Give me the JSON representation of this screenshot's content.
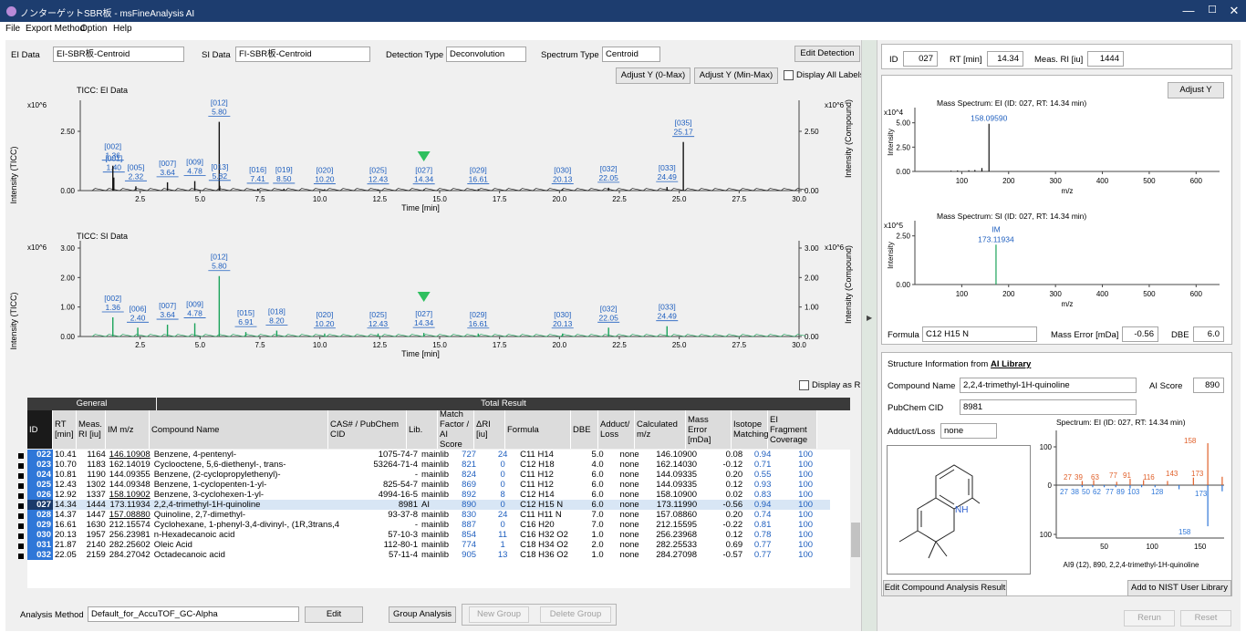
{
  "window": {
    "title": "ノンターゲットSBR板 - msFineAnalysis AI",
    "minimize": "—",
    "maximize": "☐",
    "close": "✕"
  },
  "menu": [
    "File",
    "Export Method",
    "Option",
    "Help"
  ],
  "toolbar": {
    "ei_label": "EI Data",
    "ei_value": "EI-SBR板-Centroid",
    "si_label": "SI Data",
    "si_value": "FI-SBR板-Centroid",
    "det_label": "Detection Type",
    "det_value": "Deconvolution",
    "spec_label": "Spectrum Type",
    "spec_value": "Centroid",
    "edit_detection": "Edit Detection",
    "adjust_y_max": "Adjust Y (0-Max)",
    "adjust_y_minmax": "Adjust Y (Min-Max)",
    "display_all_labels": "Display All Labels",
    "display_as_ri": "Display as RI"
  },
  "chart_data": [
    {
      "type": "line",
      "title": "TICC: EI Data",
      "xlabel": "Time [min]",
      "ylabel": "Intensity (TICC)",
      "ylabel_right": "Intensity (Compound)",
      "multiplier": "x10^6",
      "xlim": [
        0,
        30
      ],
      "ylim": [
        0,
        3.5
      ],
      "x_ticks": [
        "2.5",
        "5.0",
        "7.5",
        "10.0",
        "12.5",
        "15.0",
        "17.5",
        "20.0",
        "22.5",
        "25.0",
        "27.5",
        "30.0"
      ],
      "y_ticks": [
        "0.00",
        "2.50"
      ],
      "selected_marker": {
        "x": 14.34
      },
      "peaks": [
        {
          "id": "[001]",
          "rt": "1.40",
          "x": 1.4,
          "y": 0.55
        },
        {
          "id": "[002]",
          "rt": "1.36",
          "x": 1.36,
          "y": 1.05
        },
        {
          "id": "[005]",
          "rt": "2.32",
          "x": 2.32,
          "y": 0.18
        },
        {
          "id": "[007]",
          "rt": "3.64",
          "x": 3.64,
          "y": 0.35
        },
        {
          "id": "[009]",
          "rt": "4.78",
          "x": 4.78,
          "y": 0.4
        },
        {
          "id": "[012]",
          "rt": "5.80",
          "x": 5.8,
          "y": 2.9
        },
        {
          "id": "[013]",
          "rt": "5.82",
          "x": 5.82,
          "y": 0.2
        },
        {
          "id": "[016]",
          "rt": "7.41",
          "x": 7.41,
          "y": 0.08
        },
        {
          "id": "[019]",
          "rt": "8.50",
          "x": 8.5,
          "y": 0.08
        },
        {
          "id": "[020]",
          "rt": "10.20",
          "x": 10.2,
          "y": 0.06
        },
        {
          "id": "[025]",
          "rt": "12.43",
          "x": 12.43,
          "y": 0.05
        },
        {
          "id": "[027]",
          "rt": "14.34",
          "x": 14.34,
          "y": 0.05
        },
        {
          "id": "[029]",
          "rt": "16.61",
          "x": 16.61,
          "y": 0.06
        },
        {
          "id": "[030]",
          "rt": "20.13",
          "x": 20.13,
          "y": 0.06
        },
        {
          "id": "[032]",
          "rt": "22.05",
          "x": 22.05,
          "y": 0.12
        },
        {
          "id": "[033]",
          "rt": "24.49",
          "x": 24.49,
          "y": 0.15
        },
        {
          "id": "[035]",
          "rt": "25.17",
          "x": 25.17,
          "y": 2.05
        }
      ]
    },
    {
      "type": "line",
      "title": "TICC: SI Data",
      "xlabel": "Time [min]",
      "ylabel": "Intensity (TICC)",
      "ylabel_right": "Intensity (Compound)",
      "multiplier": "x10^6",
      "xlim": [
        0,
        30
      ],
      "ylim": [
        0,
        3.0
      ],
      "x_ticks": [
        "2.5",
        "5.0",
        "7.5",
        "10.0",
        "12.5",
        "15.0",
        "17.5",
        "20.0",
        "22.5",
        "25.0",
        "27.5",
        "30.0"
      ],
      "y_ticks": [
        "0.00",
        "1.00",
        "2.00",
        "3.00"
      ],
      "selected_marker": {
        "x": 14.34
      },
      "peaks": [
        {
          "id": "[002]",
          "rt": "1.36",
          "x": 1.36,
          "y": 0.65
        },
        {
          "id": "[006]",
          "rt": "2.40",
          "x": 2.4,
          "y": 0.3
        },
        {
          "id": "[007]",
          "rt": "3.64",
          "x": 3.64,
          "y": 0.4
        },
        {
          "id": "[009]",
          "rt": "4.78",
          "x": 4.78,
          "y": 0.45
        },
        {
          "id": "[012]",
          "rt": "5.80",
          "x": 5.8,
          "y": 2.05
        },
        {
          "id": "[015]",
          "rt": "6.91",
          "x": 6.91,
          "y": 0.15
        },
        {
          "id": "[018]",
          "rt": "8.20",
          "x": 8.2,
          "y": 0.2
        },
        {
          "id": "[020]",
          "rt": "10.20",
          "x": 10.2,
          "y": 0.1
        },
        {
          "id": "[025]",
          "rt": "12.43",
          "x": 12.43,
          "y": 0.1
        },
        {
          "id": "[027]",
          "rt": "14.34",
          "x": 14.34,
          "y": 0.12
        },
        {
          "id": "[029]",
          "rt": "16.61",
          "x": 16.61,
          "y": 0.1
        },
        {
          "id": "[030]",
          "rt": "20.13",
          "x": 20.13,
          "y": 0.1
        },
        {
          "id": "[032]",
          "rt": "22.05",
          "x": 22.05,
          "y": 0.3
        },
        {
          "id": "[033]",
          "rt": "24.49",
          "x": 24.49,
          "y": 0.35
        }
      ]
    },
    {
      "type": "bar",
      "title": "Mass Spectrum: EI (ID: 027, RT: 14.34 min)",
      "xlabel": "m/z",
      "ylabel": "Intensity",
      "multiplier": "x10^4",
      "xlim": [
        0,
        650
      ],
      "ylim": [
        0,
        6
      ],
      "x_ticks": [
        "100",
        "200",
        "300",
        "400",
        "500",
        "600"
      ],
      "y_ticks": [
        "0.00",
        "2.50",
        "5.00"
      ],
      "peak_label": "158.09590",
      "peaks": [
        {
          "mz": 158.1,
          "y": 4.9
        },
        {
          "mz": 143,
          "y": 0.35
        },
        {
          "mz": 128,
          "y": 0.15
        },
        {
          "mz": 115,
          "y": 0.12
        },
        {
          "mz": 91,
          "y": 0.1
        },
        {
          "mz": 77,
          "y": 0.08
        }
      ]
    },
    {
      "type": "bar",
      "title": "Mass Spectrum: SI (ID: 027, RT: 14.34 min)",
      "xlabel": "m/z",
      "ylabel": "Intensity",
      "multiplier": "x10^5",
      "xlim": [
        0,
        650
      ],
      "ylim": [
        0,
        3
      ],
      "x_ticks": [
        "100",
        "200",
        "300",
        "400",
        "500",
        "600"
      ],
      "y_ticks": [
        "0.00",
        "2.50"
      ],
      "peak_label_1": "IM",
      "peak_label_2": "173.11934",
      "peaks": [
        {
          "mz": 173.1,
          "y": 2.05
        }
      ]
    },
    {
      "type": "bar",
      "title": "Spectrum: EI (ID: 027, RT: 14.34 min)",
      "caption": "AI9 (12), 890, 2,2,4-trimethyl-1H-quinoline",
      "xlim": [
        0,
        175
      ],
      "x_ticks": [
        "50",
        "100",
        "150"
      ],
      "y_ticks": [
        "100",
        "0",
        "100"
      ],
      "top_labels": [
        "27",
        "39",
        "63",
        "77",
        "91",
        "116",
        "143",
        "173",
        "158"
      ],
      "bottom_labels": [
        "27",
        "38",
        "50",
        "62",
        "77",
        "89",
        "103",
        "128",
        "173",
        "158"
      ],
      "top": [
        {
          "mz": 27,
          "y": 10
        },
        {
          "mz": 39,
          "y": 12
        },
        {
          "mz": 63,
          "y": 8
        },
        {
          "mz": 77,
          "y": 15
        },
        {
          "mz": 91,
          "y": 12
        },
        {
          "mz": 116,
          "y": 10
        },
        {
          "mz": 143,
          "y": 18
        },
        {
          "mz": 158,
          "y": 100
        },
        {
          "mz": 173,
          "y": 20
        }
      ],
      "bottom": [
        {
          "mz": 27,
          "y": 5
        },
        {
          "mz": 38,
          "y": 5
        },
        {
          "mz": 50,
          "y": 5
        },
        {
          "mz": 62,
          "y": 5
        },
        {
          "mz": 77,
          "y": 8
        },
        {
          "mz": 89,
          "y": 5
        },
        {
          "mz": 103,
          "y": 5
        },
        {
          "mz": 128,
          "y": 10
        },
        {
          "mz": 158,
          "y": 100
        },
        {
          "mz": 173,
          "y": 15
        }
      ]
    }
  ],
  "table": {
    "group_general": "General",
    "group_total": "Total Result",
    "columns": [
      "ID",
      "RT [min]",
      "Meas. RI [iu]",
      "IM m/z",
      "Compound Name",
      "CAS# / PubChem CID",
      "Lib.",
      "Match Factor / AI Score",
      "ΔRI [iu]",
      "Formula",
      "DBE",
      "Adduct/ Loss",
      "Calculated m/z",
      "Mass Error [mDa]",
      "Isotope Matching",
      "EI Fragment Coverage"
    ],
    "rows": [
      [
        "022",
        "10.41",
        "1164",
        "146.10908",
        "Benzene, 4-pentenyl-",
        "1075-74-7",
        "mainlib",
        "727",
        "24",
        "C11 H14",
        "5.0",
        "none",
        "146.10900",
        "0.08",
        "0.94",
        "100"
      ],
      [
        "023",
        "10.70",
        "1183",
        "162.14019",
        "Cyclooctene, 5,6-diethenyl-, trans-",
        "53264-71-4",
        "mainlib",
        "821",
        "0",
        "C12 H18",
        "4.0",
        "none",
        "162.14030",
        "-0.12",
        "0.71",
        "100"
      ],
      [
        "024",
        "10.81",
        "1190",
        "144.09355",
        "Benzene, (2-cyclopropylethenyl)-",
        "-",
        "mainlib",
        "824",
        "0",
        "C11 H12",
        "6.0",
        "none",
        "144.09335",
        "0.20",
        "0.55",
        "100"
      ],
      [
        "025",
        "12.43",
        "1302",
        "144.09348",
        "Benzene, 1-cyclopenten-1-yl-",
        "825-54-7",
        "mainlib",
        "869",
        "0",
        "C11 H12",
        "6.0",
        "none",
        "144.09335",
        "0.12",
        "0.93",
        "100"
      ],
      [
        "026",
        "12.92",
        "1337",
        "158.10902",
        "Benzene, 3-cyclohexen-1-yl-",
        "4994-16-5",
        "mainlib",
        "892",
        "8",
        "C12 H14",
        "6.0",
        "none",
        "158.10900",
        "0.02",
        "0.83",
        "100"
      ],
      [
        "027",
        "14.34",
        "1444",
        "173.11934",
        "2,2,4-trimethyl-1H-quinoline",
        "8981",
        "AI",
        "890",
        "0",
        "C12 H15 N",
        "6.0",
        "none",
        "173.11990",
        "-0.56",
        "0.94",
        "100"
      ],
      [
        "028",
        "14.37",
        "1447",
        "157.08880",
        "Quinoline, 2,7-dimethyl-",
        "93-37-8",
        "mainlib",
        "830",
        "24",
        "C11 H11 N",
        "7.0",
        "none",
        "157.08860",
        "0.20",
        "0.74",
        "100"
      ],
      [
        "029",
        "16.61",
        "1630",
        "212.15574",
        "Cyclohexane, 1-phenyl-3,4-divinyl-, (1R,3trans,4",
        "-",
        "mainlib",
        "887",
        "0",
        "C16 H20",
        "7.0",
        "none",
        "212.15595",
        "-0.22",
        "0.81",
        "100"
      ],
      [
        "030",
        "20.13",
        "1957",
        "256.23981",
        "n-Hexadecanoic acid",
        "57-10-3",
        "mainlib",
        "854",
        "11",
        "C16 H32 O2",
        "1.0",
        "none",
        "256.23968",
        "0.12",
        "0.78",
        "100"
      ],
      [
        "031",
        "21.87",
        "2140",
        "282.25602",
        "Oleic Acid",
        "112-80-1",
        "mainlib",
        "774",
        "1",
        "C18 H34 O2",
        "2.0",
        "none",
        "282.25533",
        "0.69",
        "0.77",
        "100"
      ],
      [
        "032",
        "22.05",
        "2159",
        "284.27042",
        "Octadecanoic acid",
        "57-11-4",
        "mainlib",
        "905",
        "13",
        "C18 H36 O2",
        "1.0",
        "none",
        "284.27098",
        "-0.57",
        "0.77",
        "100"
      ]
    ]
  },
  "bottom": {
    "analysis_method_label": "Analysis Method",
    "analysis_method_value": "Default_for_AccuTOF_GC-Alpha",
    "edit": "Edit",
    "group_analysis": "Group Analysis",
    "new_group": "New Group",
    "delete_group": "Delete Group",
    "rerun": "Rerun",
    "reset": "Reset"
  },
  "right": {
    "id_label": "ID",
    "id_value": "027",
    "rt_label": "RT [min]",
    "rt_value": "14.34",
    "ri_label": "Meas. RI [iu]",
    "ri_value": "1444",
    "adjust_y": "Adjust Y",
    "formula_label": "Formula",
    "formula_value": "C12 H15 N",
    "mass_error_label": "Mass Error [mDa]",
    "mass_error_value": "-0.56",
    "dbe_label": "DBE",
    "dbe_value": "6.0",
    "struct_title": "Structure Information from ",
    "struct_title_link": "AI Library",
    "compound_label": "Compound Name",
    "compound_value": "2,2,4-trimethyl-1H-quinoline",
    "ai_score_label": "AI Score",
    "ai_score_value": "890",
    "pubchem_label": "PubChem CID",
    "pubchem_value": "8981",
    "adduct_label": "Adduct/Loss",
    "adduct_value": "none",
    "nh_label": "NH",
    "edit_compound": "Edit Compound Analysis Result",
    "add_nist": "Add to NIST User Library"
  }
}
